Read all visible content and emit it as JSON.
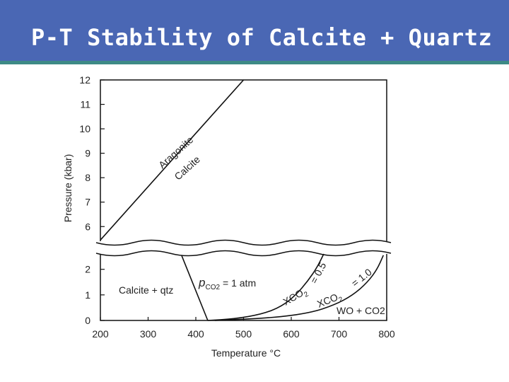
{
  "slide": {
    "title": "P-T Stability of Calcite + Quartz"
  },
  "chart_data": {
    "type": "line",
    "title": "",
    "xlabel": "Temperature °C",
    "ylabel": "Pressure (kbar)",
    "xlim": [
      200,
      800
    ],
    "x_ticks": [
      200,
      300,
      400,
      500,
      600,
      700,
      800
    ],
    "y_ticks_upper": [
      6,
      7,
      8,
      9,
      10,
      11,
      12
    ],
    "y_ticks_lower": [
      0,
      1,
      2
    ],
    "ylim_upper": [
      5.4,
      12
    ],
    "ylim_lower": [
      0,
      2.6
    ],
    "axis_break": true,
    "series": [
      {
        "key": "aragonite_calcite",
        "panel": "upper",
        "x": [
          200,
          500
        ],
        "y": [
          5.45,
          12
        ]
      },
      {
        "key": "pco2_1atm",
        "panel": "lower",
        "x": [
          370,
          425
        ],
        "y": [
          2.55,
          0
        ]
      },
      {
        "key": "xco2_05",
        "panel": "lower",
        "x": [
          425,
          480,
          540,
          580,
          610,
          635,
          655,
          668
        ],
        "y": [
          0,
          0.06,
          0.25,
          0.55,
          1.0,
          1.55,
          2.1,
          2.6
        ]
      },
      {
        "key": "xco2_10",
        "panel": "lower",
        "x": [
          440,
          560,
          640,
          690,
          730,
          760,
          780,
          793
        ],
        "y": [
          0,
          0.1,
          0.3,
          0.6,
          1.0,
          1.5,
          2.0,
          2.55
        ]
      }
    ],
    "annotations": {
      "aragonite": "Aragonite",
      "calcite": "Calcite",
      "pco2_sub": "CO2",
      "pco2_rest": "= 1 atm",
      "calcite_qtz": "Calcite + qtz",
      "xco2_05_x": "XCO",
      "xco2_05_sub": "2",
      "xco2_05_val": "= 0.5",
      "xco2_10_x": "XCO",
      "xco2_10_sub": "2",
      "xco2_10_val": "= 1.0",
      "wo_co2": "WO + CO2"
    }
  }
}
